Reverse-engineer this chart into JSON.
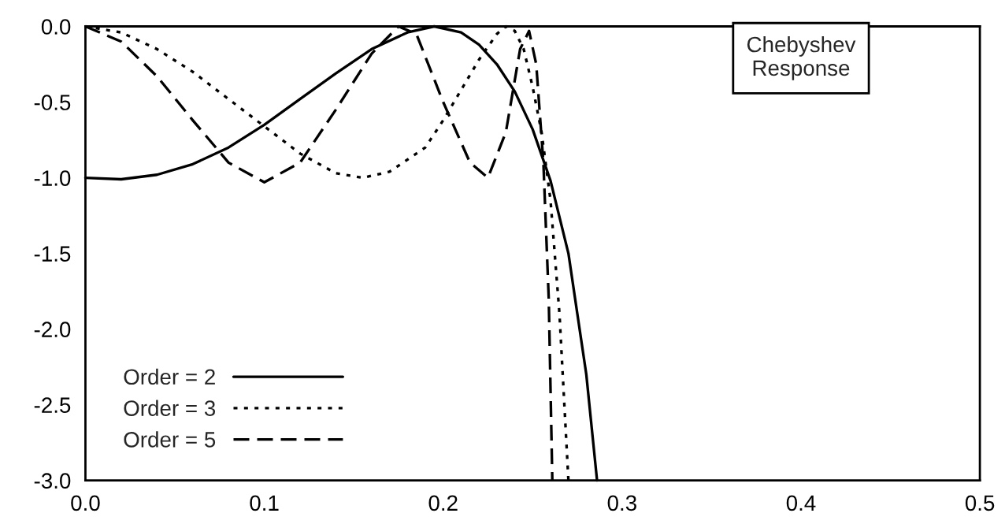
{
  "chart_data": {
    "type": "line",
    "title": "Chebyshev\nResponse",
    "xlim": [
      0.0,
      0.5
    ],
    "ylim": [
      -3.0,
      0.0
    ],
    "xticks": [
      {
        "value": 0,
        "label": "0.0"
      },
      0.1,
      0.2,
      0.3,
      0.4,
      0.5
    ],
    "yticks": [
      {
        "value": 0,
        "label": "0.0"
      },
      -0.5,
      {
        "value": -1,
        "label": "-1.0"
      },
      -1.5,
      {
        "value": -2,
        "label": "-2.0"
      },
      -2.5,
      {
        "value": -3,
        "label": "-3.0"
      }
    ],
    "grid": false,
    "legend": "bottom left",
    "series": [
      {
        "name": "Order = 2",
        "color": "#000000",
        "line_style": "solid",
        "x": [
          0,
          0.02,
          0.04,
          0.06,
          0.08,
          0.1,
          0.12,
          0.14,
          0.16,
          0.18,
          0.195,
          0.21,
          0.22,
          0.23,
          0.24,
          0.25,
          0.26,
          0.27,
          0.275,
          0.28,
          0.286
        ],
        "values": [
          -1.0,
          -1.01,
          -0.98,
          -0.91,
          -0.8,
          -0.65,
          -0.48,
          -0.31,
          -0.15,
          -0.04,
          0.0,
          -0.04,
          -0.12,
          -0.25,
          -0.43,
          -0.68,
          -1.02,
          -1.5,
          -1.9,
          -2.3,
          -3.0
        ]
      },
      {
        "name": "Order = 3",
        "color": "#000000",
        "line_style": "dotted",
        "x": [
          0,
          0.02,
          0.04,
          0.06,
          0.08,
          0.1,
          0.12,
          0.14,
          0.155,
          0.17,
          0.19,
          0.2,
          0.21,
          0.22,
          0.23,
          0.235,
          0.24,
          0.245,
          0.25,
          0.255,
          0.26,
          0.265,
          0.27
        ],
        "values": [
          0.0,
          -0.04,
          -0.15,
          -0.3,
          -0.48,
          -0.66,
          -0.84,
          -0.97,
          -1.0,
          -0.96,
          -0.8,
          -0.62,
          -0.42,
          -0.22,
          -0.05,
          0.0,
          -0.03,
          -0.15,
          -0.4,
          -0.7,
          -1.15,
          -1.9,
          -3.0
        ]
      },
      {
        "name": "Order = 5",
        "color": "#000000",
        "line_style": "dashed",
        "x": [
          0,
          0.02,
          0.04,
          0.06,
          0.08,
          0.1,
          0.12,
          0.14,
          0.16,
          0.175,
          0.185,
          0.2,
          0.215,
          0.225,
          0.235,
          0.243,
          0.248,
          0.252,
          0.256,
          0.259,
          0.261
        ],
        "values": [
          0.0,
          -0.1,
          -0.33,
          -0.62,
          -0.9,
          -1.03,
          -0.9,
          -0.55,
          -0.18,
          0.0,
          -0.05,
          -0.5,
          -0.9,
          -1.0,
          -0.7,
          -0.15,
          -0.03,
          -0.25,
          -0.9,
          -1.8,
          -3.0
        ]
      }
    ]
  }
}
